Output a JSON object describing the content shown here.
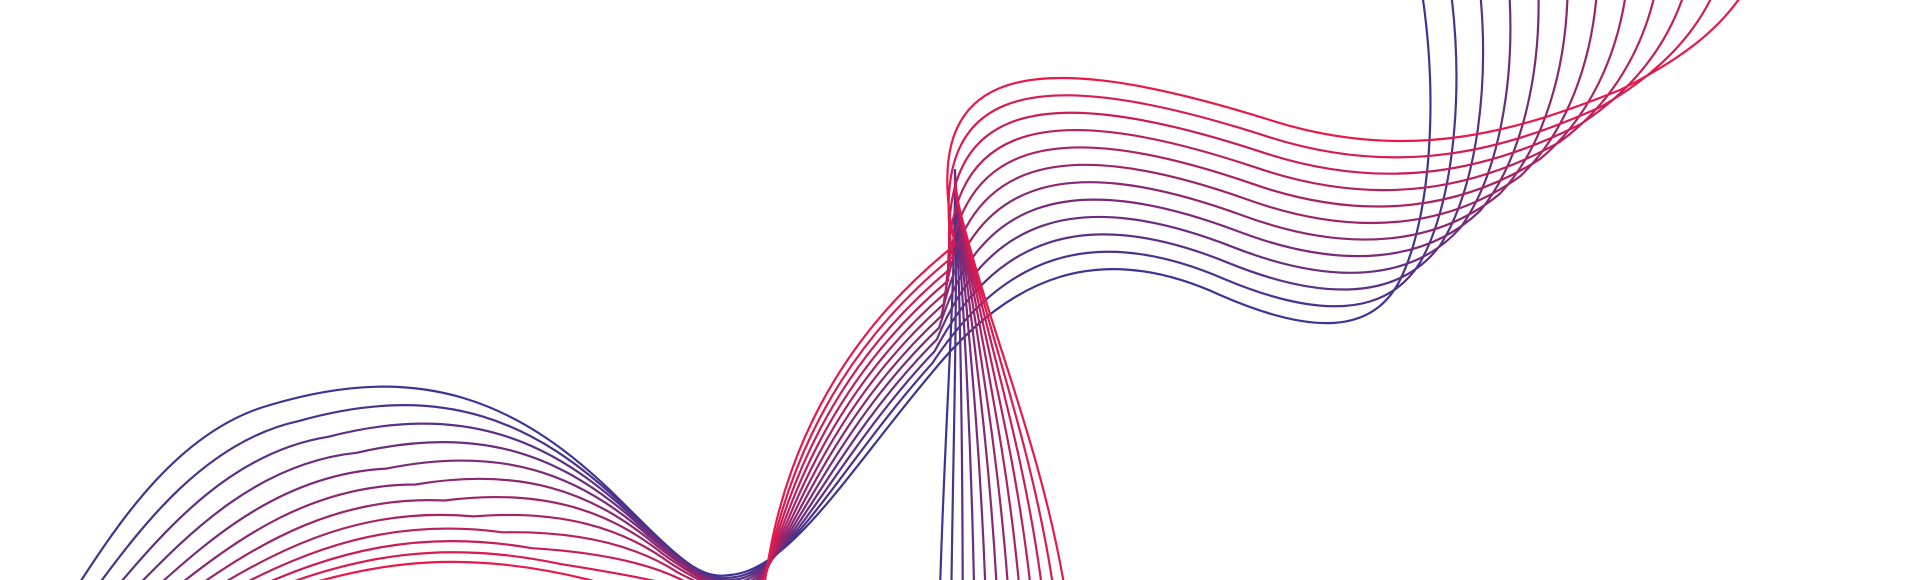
{
  "artwork": {
    "background_color": "#ffffff",
    "gradient_start_color": "#3c3592",
    "gradient_end_color": "#e8184a",
    "wave_line_count": 12
  }
}
